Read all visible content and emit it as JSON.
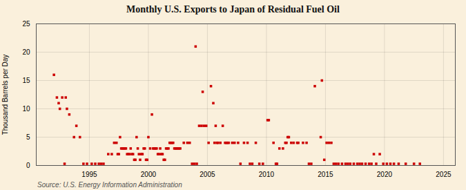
{
  "chart_data": {
    "type": "scatter",
    "title": "Monthly U.S. Exports to Japan of Residual Fuel Oil",
    "ylabel": "Thousand Barrels per Day",
    "source": "Source: U.S. Energy Information Administration",
    "color": "#cc0000",
    "marker": "square",
    "grid": true,
    "xlim": [
      1990.5,
      2026
    ],
    "ylim": [
      0,
      25
    ],
    "xticks": [
      1995,
      2000,
      2005,
      2010,
      2015,
      2020,
      2025
    ],
    "yticks": [
      0,
      5,
      10,
      15,
      20,
      25
    ],
    "x": [
      1992.0,
      1992.25,
      1992.4,
      1992.5,
      1992.7,
      1993.0,
      1993.1,
      1993.3,
      1993.7,
      1993.9,
      1994.2,
      1996.6,
      1996.9,
      1997.1,
      1997.3,
      1997.4,
      1997.5,
      1997.6,
      1997.7,
      1997.8,
      1997.9,
      1998.0,
      1998.1,
      1998.2,
      1998.3,
      1998.4,
      1998.5,
      1998.6,
      1998.7,
      1998.8,
      1998.9,
      1999.0,
      1999.1,
      1999.2,
      1999.3,
      1999.4,
      1999.5,
      1999.6,
      1999.7,
      1999.8,
      1999.9,
      2000.0,
      2000.15,
      2000.3,
      2000.4,
      2000.5,
      2000.6,
      2000.7,
      2000.8,
      2000.9,
      2001.0,
      2001.1,
      2001.2,
      2001.3,
      2001.4,
      2001.5,
      2001.6,
      2001.7,
      2001.8,
      2001.9,
      2002.0,
      2002.1,
      2002.2,
      2002.3,
      2002.4,
      2002.5,
      2002.6,
      2002.7,
      2003.0,
      2003.3,
      2003.5,
      2004.0,
      2004.3,
      2004.5,
      2004.6,
      2004.7,
      2004.9,
      2005.1,
      2005.3,
      2005.5,
      2005.6,
      2005.7,
      2005.8,
      2005.9,
      2006.1,
      2006.3,
      2006.5,
      2006.6,
      2006.7,
      2006.8,
      2007.1,
      2007.3,
      2007.6,
      2008.1,
      2008.4,
      2009.1,
      2010.1,
      2010.2,
      2010.6,
      2011.1,
      2011.4,
      2011.6,
      2011.7,
      2011.8,
      2011.9,
      2012.1,
      2012.3,
      2012.6,
      2012.7,
      2013.1,
      2013.4,
      2014.1,
      2014.6,
      2014.7,
      2014.9,
      2015.1,
      2015.3,
      2015.5,
      2019.1,
      2019.6,
      2020.2,
      2020.5,
      2020.8,
      2021.2,
      2021.8,
      2022.5,
      2023.0,
      1992.9,
      1994.5,
      1994.8,
      1995.2,
      1995.5,
      1995.8,
      1996.0,
      1996.2,
      2003.7,
      2003.9,
      2004.1,
      2007.8,
      2008.6,
      2008.8,
      2009.4,
      2009.7,
      2010.8,
      2010.9,
      2013.6,
      2013.8,
      2015.7,
      2015.9,
      2016.1,
      2016.4,
      2016.7,
      2016.9,
      2017.1,
      2017.4,
      2017.7,
      2017.9,
      2018.1,
      2018.4,
      2018.7,
      2018.9,
      2019.3,
      2019.9
    ],
    "values": [
      16.0,
      12.0,
      11.0,
      10.0,
      12.0,
      12.0,
      10.0,
      9.0,
      5.0,
      7.0,
      5.0,
      2.0,
      2.0,
      4.0,
      4.0,
      2.0,
      2.0,
      5.0,
      3.0,
      3.0,
      3.0,
      3.0,
      3.0,
      2.0,
      2.0,
      2.0,
      3.0,
      2.0,
      2.0,
      1.0,
      1.0,
      5.0,
      3.0,
      2.0,
      1.0,
      2.0,
      2.0,
      3.0,
      3.0,
      1.0,
      1.0,
      5.0,
      3.0,
      9.0,
      3.0,
      3.0,
      3.0,
      3.0,
      2.0,
      2.0,
      3.0,
      2.0,
      2.0,
      1.0,
      1.0,
      3.0,
      3.0,
      3.0,
      4.0,
      4.0,
      4.0,
      4.0,
      3.0,
      3.0,
      3.0,
      3.0,
      3.0,
      3.0,
      4.0,
      4.0,
      4.0,
      21.0,
      7.0,
      7.0,
      13.0,
      7.0,
      7.0,
      4.0,
      14.0,
      11.0,
      4.0,
      7.0,
      4.0,
      4.0,
      4.0,
      7.0,
      4.0,
      4.0,
      4.0,
      4.0,
      4.0,
      4.0,
      4.0,
      4.0,
      4.0,
      4.0,
      8.0,
      8.0,
      4.0,
      3.0,
      3.0,
      4.0,
      4.0,
      5.0,
      5.0,
      4.0,
      4.0,
      4.0,
      4.0,
      4.0,
      4.0,
      14.0,
      5.0,
      15.0,
      1.0,
      4.0,
      4.0,
      4.0,
      2.0,
      2.0,
      0.3,
      0.3,
      0.3,
      0.3,
      0.3,
      0.3,
      0.3,
      0.3,
      0.3,
      0.3,
      0.3,
      0.3,
      0.3,
      0.3,
      0.3,
      0.3,
      0.3,
      0.3,
      0.3,
      0.3,
      0.3,
      0.3,
      0.3,
      0.3,
      0.3,
      0.3,
      0.3,
      0.3,
      0.3,
      0.3,
      0.3,
      0.3,
      0.3,
      0.3,
      0.3,
      0.3,
      0.3,
      0.3,
      0.3,
      0.3,
      0.3,
      0.3,
      0.3
    ]
  }
}
